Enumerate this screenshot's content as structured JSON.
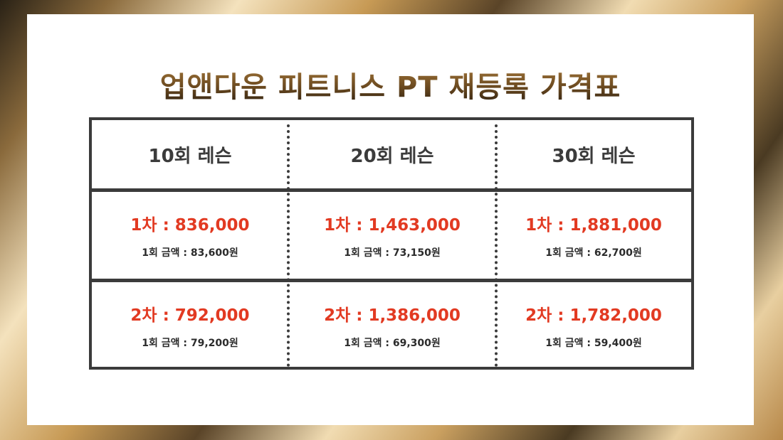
{
  "title": "업앤다운 피트니스 PT 재등록 가격표",
  "columns": [
    "10회 레슨",
    "20회 레슨",
    "30회 레슨"
  ],
  "rows": [
    {
      "cells": [
        {
          "price": "1차 : 836,000",
          "unit": "1회 금액 : 83,600원"
        },
        {
          "price": "1차 : 1,463,000",
          "unit": "1회 금액 : 73,150원"
        },
        {
          "price": "1차 : 1,881,000",
          "unit": "1회 금액 : 62,700원"
        }
      ]
    },
    {
      "cells": [
        {
          "price": "2차 : 792,000",
          "unit": "1회 금액 : 79,200원"
        },
        {
          "price": "2차 : 1,386,000",
          "unit": "1회 금액 : 69,300원"
        },
        {
          "price": "2차 : 1,782,000",
          "unit": "1회 금액 : 59,400원"
        }
      ]
    }
  ],
  "colors": {
    "price_red": "#e23a22",
    "border_dark": "#3b3b3b",
    "title_brown": "#6b4a20"
  }
}
